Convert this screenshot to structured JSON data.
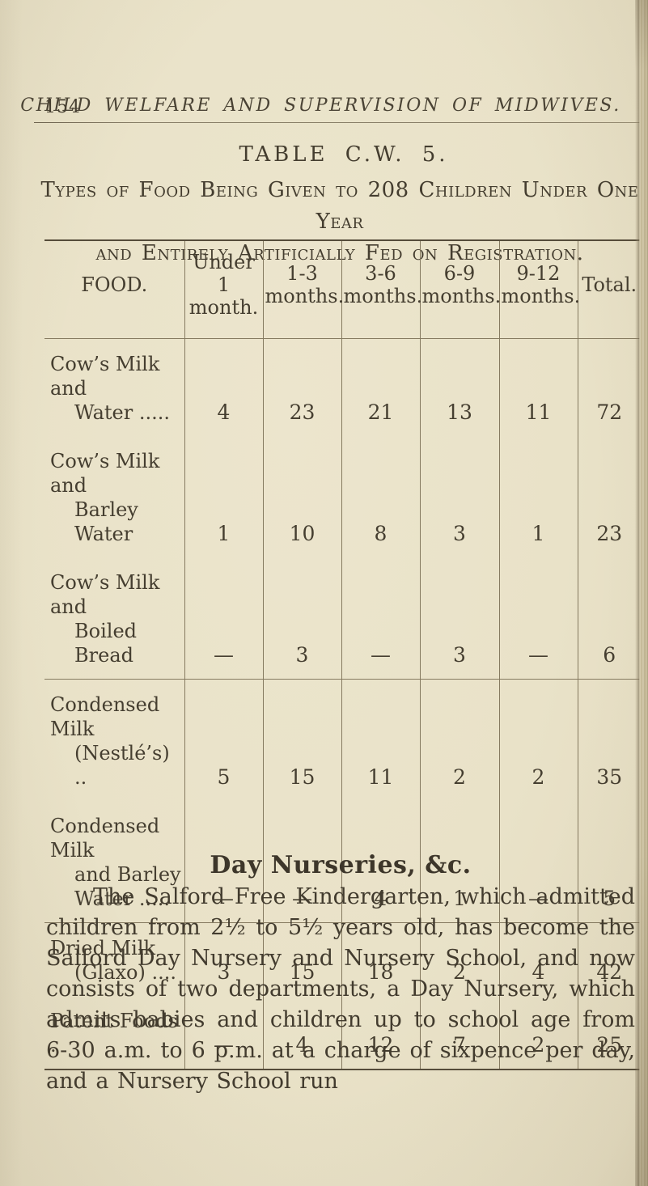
{
  "page": {
    "number": "154",
    "running_head": "CHILD WELFARE AND SUPERVISION OF MIDWIVES."
  },
  "table": {
    "title": "TABLE C.W. 5.",
    "caption": {
      "line1": "Types of Food Being Given to 208 Children Under One Year",
      "line2": "and Entirely Artificially Fed on Registration."
    },
    "columns": [
      {
        "l1": "FOOD."
      },
      {
        "l1": "Under 1",
        "l2": "month."
      },
      {
        "l1": "1-3",
        "l2": "months."
      },
      {
        "l1": "3-6",
        "l2": "months."
      },
      {
        "l1": "6-9",
        "l2": "months."
      },
      {
        "l1": "9-12",
        "l2": "months."
      },
      {
        "l1": "Total."
      }
    ],
    "groups": [
      {
        "rows": [
          {
            "label": [
              "Cow’s Milk and",
              "Water ....."
            ],
            "values": [
              "4",
              "23",
              "21",
              "13",
              "11",
              "72"
            ]
          },
          {
            "label": [
              "Cow’s Milk and",
              "Barley Water"
            ],
            "values": [
              "1",
              "10",
              "8",
              "3",
              "1",
              "23"
            ]
          },
          {
            "label": [
              "Cow’s Milk and",
              "Boiled Bread"
            ],
            "values": [
              "—",
              "3",
              "—",
              "3",
              "—",
              "6"
            ]
          }
        ]
      },
      {
        "rows": [
          {
            "label": [
              "Condensed Milk",
              "(Nestlé’s) .."
            ],
            "values": [
              "5",
              "15",
              "11",
              "2",
              "2",
              "35"
            ]
          },
          {
            "label": [
              "Condensed Milk",
              "and Barley",
              "Water ....."
            ],
            "values": [
              "—",
              "—",
              "4",
              "1",
              "—",
              "5"
            ]
          }
        ]
      },
      {
        "rows": [
          {
            "label": [
              "Dried Milk",
              "(Glaxo) ...."
            ],
            "values": [
              "3",
              "15",
              "18",
              "2",
              "4",
              "42"
            ]
          },
          {
            "label": [
              "Patent Foods ."
            ],
            "values": [
              "—",
              "4",
              "12",
              "7",
              "2",
              "25"
            ]
          }
        ]
      }
    ]
  },
  "section": {
    "heading": "Day Nurseries, &c.",
    "paragraph": "The Salford Free Kindergarten, which admitted children from 2½ to 5½ years old, has become the Salford Day Nursery and Nursery School, and now consists of two departments, a Day Nursery, which admits babies and children up to school age from 6-30 a.m. to 6 p.m. at a charge of sixpence per day, and a Nursery School run"
  },
  "colors": {
    "paper": "#e9e2c8",
    "ink": "#473f33",
    "rule": "#857a60"
  }
}
